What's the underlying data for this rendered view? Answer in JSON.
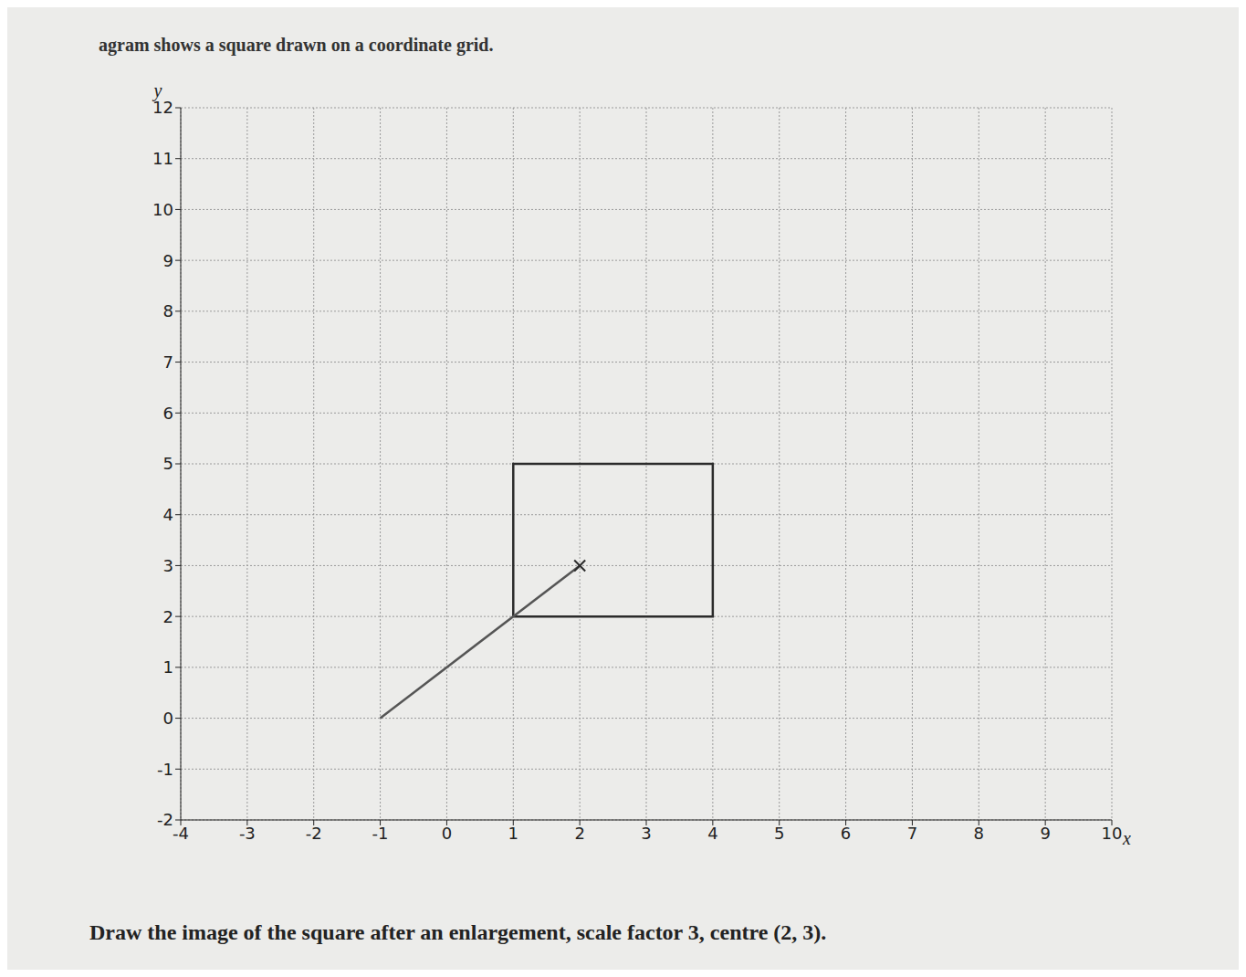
{
  "chart_data": {
    "type": "scatter",
    "title": "agram shows a square drawn on a coordinate grid.",
    "annotations": [
      "Draw the image of the square after an enlargement, scale factor 3, centre (2, 3)."
    ],
    "x_label": "x",
    "y_label": "y",
    "xlim": [
      -4,
      10
    ],
    "ylim": [
      -2,
      12
    ],
    "xticks": [
      -4,
      -3,
      -2,
      -1,
      0,
      1,
      2,
      3,
      4,
      5,
      6,
      7,
      8,
      9,
      10
    ],
    "yticks": [
      -2,
      -1,
      0,
      1,
      2,
      3,
      4,
      5,
      6,
      7,
      8,
      9,
      10,
      11,
      12
    ],
    "grid": true,
    "series": [
      {
        "type": "line",
        "x": [
          1,
          4,
          4,
          1,
          1
        ],
        "y": [
          2,
          2,
          5,
          5,
          2
        ],
        "color": "#2b2b2b"
      },
      {
        "type": "line",
        "x": [
          -1,
          2
        ],
        "y": [
          0,
          3
        ],
        "color": "#555555"
      },
      {
        "type": "scatter",
        "x": [
          2
        ],
        "y": [
          3
        ],
        "marker": "x",
        "color": "#2b2b2b"
      }
    ]
  }
}
